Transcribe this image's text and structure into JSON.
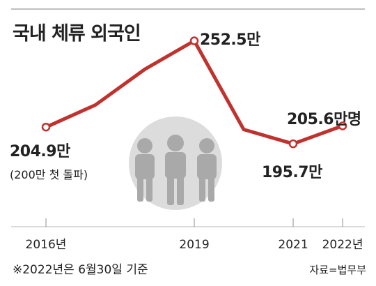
{
  "title": "국내 체류 외국인",
  "chart_data": {
    "type": "line",
    "x": [
      2016,
      2017,
      2018,
      2019,
      2020,
      2021,
      2022
    ],
    "values": [
      204.9,
      217.1,
      236.8,
      252.5,
      203.6,
      195.7,
      205.6
    ],
    "unit": "만명",
    "ylim": [
      150,
      275
    ],
    "xlim": [
      2016,
      2022.45
    ],
    "line_color": "#c0322e",
    "tick_labels": [
      {
        "x": 2016,
        "label": "2016년"
      },
      {
        "x": 2019,
        "label": "2019"
      },
      {
        "x": 2021,
        "label": "2021"
      },
      {
        "x": 2022,
        "label": "2022년"
      }
    ],
    "annotations": {
      "2016": "204.9만",
      "2016_sub": "(200만 첫 돌파)",
      "2019": "252.5만",
      "2021": "195.7만",
      "2022": "205.6만명"
    },
    "marked_points": [
      2016,
      2019,
      2021,
      2022
    ]
  },
  "footnote": "※2022년은 6월30일 기준",
  "source": "자료=법무부"
}
